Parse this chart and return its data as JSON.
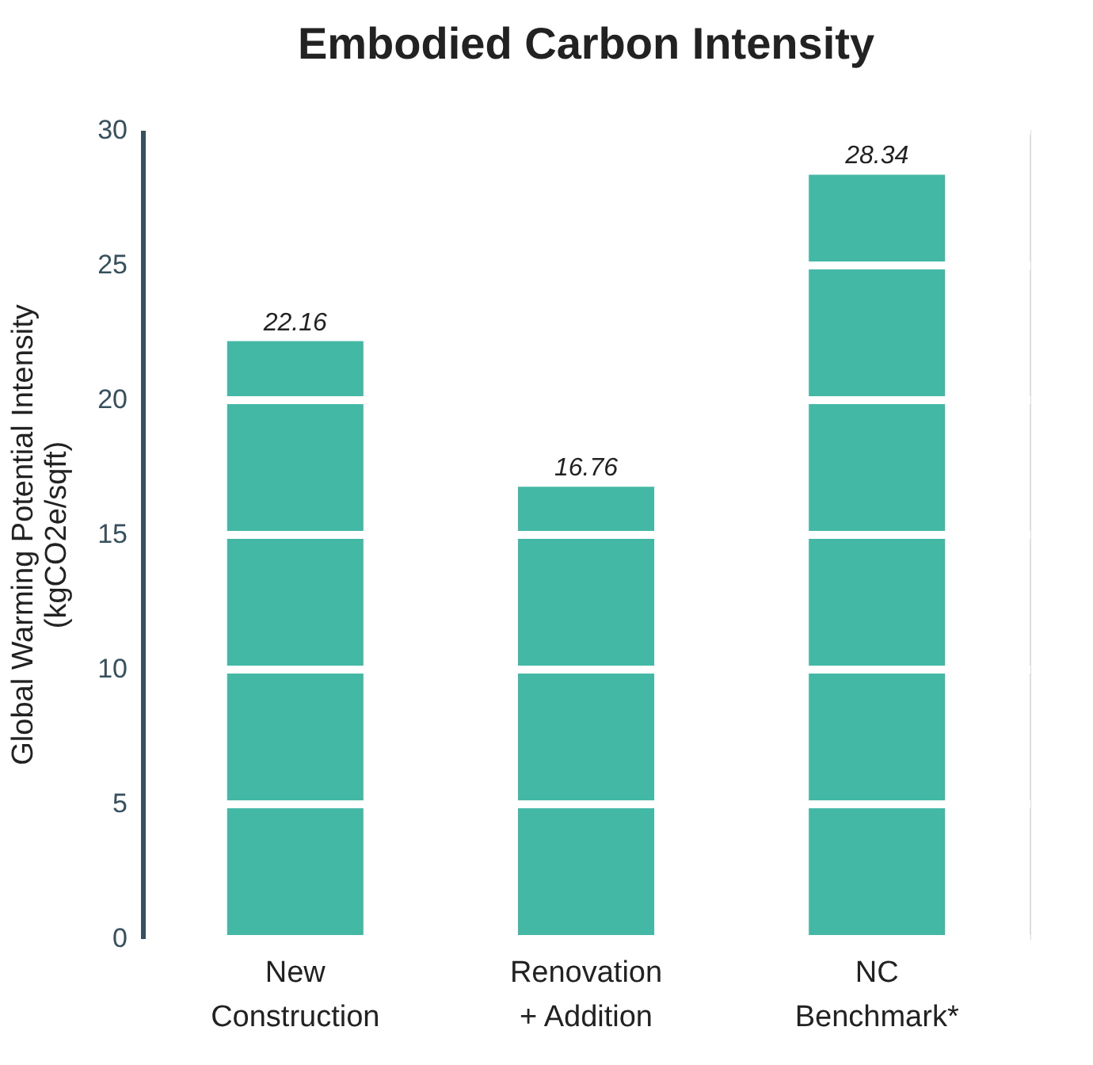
{
  "chart_data": {
    "type": "bar",
    "title": "Embodied Carbon Intensity",
    "ylabel": "Global Warming Potential Intensity\n(kgCO2e/sqft)",
    "categories": [
      "New\nConstruction",
      "Renovation\n+ Addition",
      "NC\nBenchmark*"
    ],
    "values": [
      22.16,
      16.76,
      28.34
    ],
    "color": "#43b9a5",
    "ylim": [
      0,
      30
    ],
    "yticks": [
      0,
      5,
      10,
      15,
      20,
      25,
      30
    ],
    "grid": "y",
    "data_labels": true
  }
}
